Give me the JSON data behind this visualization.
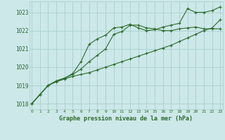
{
  "title": "Graphe pression niveau de la mer (hPa)",
  "bg_color": "#cce8e8",
  "grid_color": "#aacece",
  "line_color": "#2d6a2d",
  "ylim": [
    1017.7,
    1023.6
  ],
  "yticks": [
    1018,
    1019,
    1020,
    1021,
    1022,
    1023
  ],
  "xlim": [
    -0.3,
    23.3
  ],
  "series": {
    "line_bottom": [
      1018.0,
      1018.5,
      1019.0,
      1019.2,
      1019.35,
      1019.5,
      1019.6,
      1019.7,
      1019.85,
      1020.0,
      1020.15,
      1020.3,
      1020.45,
      1020.6,
      1020.75,
      1020.9,
      1021.05,
      1021.2,
      1021.4,
      1021.6,
      1021.8,
      1022.0,
      1022.15,
      1022.6
    ],
    "line_mid": [
      1018.0,
      1018.5,
      1019.0,
      1019.25,
      1019.4,
      1019.6,
      1019.9,
      1020.3,
      1020.65,
      1021.0,
      1021.8,
      1021.95,
      1022.3,
      1022.3,
      1022.15,
      1022.1,
      1022.0,
      1022.0,
      1022.1,
      1022.15,
      1022.2,
      1022.1,
      1022.1,
      1022.1
    ],
    "line_top": [
      1018.0,
      1018.5,
      1019.0,
      1019.25,
      1019.4,
      1019.65,
      1020.3,
      1021.25,
      1021.55,
      1021.75,
      1022.15,
      1022.2,
      1022.35,
      1022.15,
      1022.0,
      1022.05,
      1022.2,
      1022.3,
      1022.4,
      1023.2,
      1023.0,
      1023.0,
      1023.1,
      1023.3
    ]
  }
}
